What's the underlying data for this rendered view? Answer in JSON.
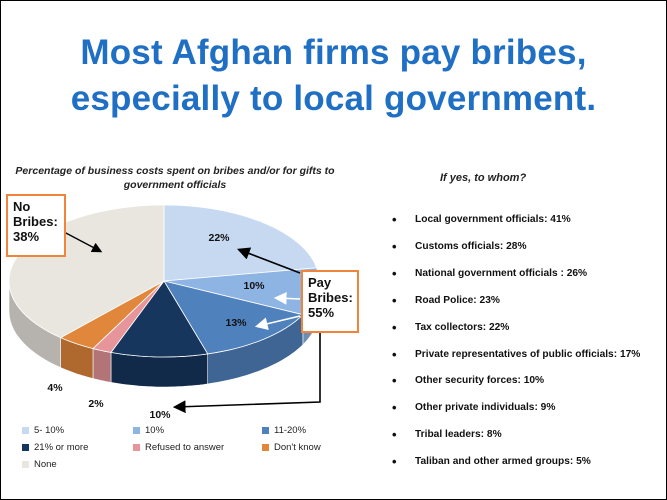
{
  "title": {
    "line1": "Most Afghan firms pay bribes,",
    "line2": "especially to local government."
  },
  "chart_data": [
    {
      "type": "pie",
      "title": "Percentage of business costs spent on bribes and/or for gifts to government officials",
      "slices": [
        {
          "name": "5- 10%",
          "value": 22,
          "label": "22%",
          "color": "#c6d9f1"
        },
        {
          "name": "10%",
          "value": 10,
          "label": "10%",
          "color": "#8eb4e3"
        },
        {
          "name": "11-20%",
          "value": 13,
          "label": "13%",
          "color": "#4f81bd"
        },
        {
          "name": "21% or more",
          "value": 10,
          "label": "10%",
          "color": "#17365d"
        },
        {
          "name": "Refused to answer",
          "value": 2,
          "label": "2%",
          "color": "#e6959a"
        },
        {
          "name": "Don't know",
          "value": 4,
          "label": "4%",
          "color": "#e0873c"
        },
        {
          "name": "None",
          "value": 38,
          "label": "",
          "color": "#e9e6df"
        }
      ],
      "legend": [
        "5- 10%",
        "10%",
        "11-20%",
        "21% or more",
        "Refused to answer",
        "Don't know",
        "None"
      ],
      "legend_placement": "bottom"
    },
    {
      "type": "table",
      "title": "If yes, to whom?",
      "items": [
        {
          "label": "Local government officials:  41%",
          "value": 41
        },
        {
          "label": "Customs officials: 28%",
          "value": 28
        },
        {
          "label": "National government officials : 26%",
          "value": 26
        },
        {
          "label": "Road Police: 23%",
          "value": 23
        },
        {
          "label": "Tax collectors: 22%",
          "value": 22
        },
        {
          "label": "Private representatives of public officials: 17%",
          "value": 17
        },
        {
          "label": "Other security forces: 10%",
          "value": 10
        },
        {
          "label": "Other private individuals: 9%",
          "value": 9
        },
        {
          "label": "Tribal leaders: 8%",
          "value": 8
        },
        {
          "label": "Taliban and other armed groups: 5%",
          "value": 5
        }
      ]
    }
  ],
  "callouts": {
    "no_bribes": {
      "line1": "No",
      "line2": "Bribes:",
      "line3": "38%"
    },
    "pay_bribes": {
      "line1": "Pay",
      "line2": "Bribes:",
      "line3": "55%"
    }
  },
  "colors": {
    "title": "#1f6fc4",
    "callout_border": "#f0843a"
  }
}
